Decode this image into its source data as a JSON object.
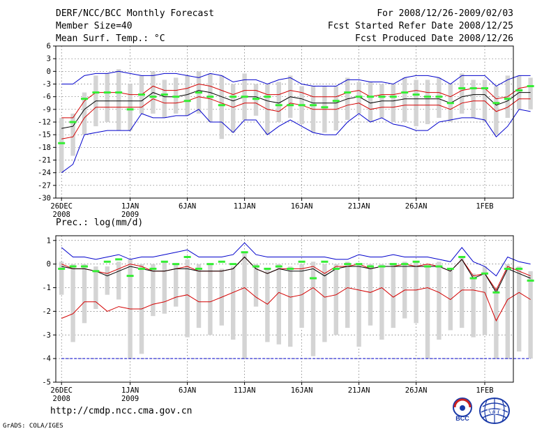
{
  "header": {
    "line1_left": "DERF/NCC/BCC Monthly Forecast",
    "line2_left": "Member Size=40",
    "line3_left": "Mean Surf. Temp.: °C",
    "line1_right": "For 2008/12/26-2009/02/03",
    "line2_right": "Fcst Started Refer Date 2008/12/25",
    "line3_right": "Fcst Produced Date 2008/12/26"
  },
  "footer": {
    "url": "http://cmdp.ncc.cma.gov.cn",
    "credit": "GrADS: COLA/IGES",
    "logo_bcc": "BCC",
    "logo_ncc": "NCC"
  },
  "colors": {
    "spread": "#d4d4d4",
    "ensemble_mean": "#000000",
    "std_band": "#d40000",
    "minmax": "#0000cc",
    "median": "#33ee33"
  },
  "chart_data": [
    {
      "type": "line",
      "name": "temperature",
      "title": "Mean Surf. Temp.: °C",
      "xlabel": "",
      "ylabel": "°C",
      "ylim": [
        -30,
        6
      ],
      "yticks": [
        6,
        3,
        0,
        -3,
        -6,
        -9,
        -12,
        -15,
        -18,
        -21,
        -24,
        -27,
        -30
      ],
      "xlim": [
        -0.5,
        39.5
      ],
      "xticks": [
        {
          "x": 0,
          "label": "26DEC",
          "sub": "2008"
        },
        {
          "x": 6,
          "label": "1JAN",
          "sub": "2009"
        },
        {
          "x": 11,
          "label": "6JAN"
        },
        {
          "x": 16,
          "label": "11JAN"
        },
        {
          "x": 21,
          "label": "16JAN"
        },
        {
          "x": 26,
          "label": "21JAN"
        },
        {
          "x": 31,
          "label": "26JAN"
        },
        {
          "x": 37,
          "label": "1FEB"
        }
      ],
      "grid": true,
      "series": [
        {
          "name": "max",
          "values": [
            -3,
            -3,
            -1,
            -0.5,
            -0.5,
            0,
            -0.5,
            -1,
            -1,
            -0.5,
            -0.5,
            -1,
            -1.5,
            -0.5,
            -1,
            -2.5,
            -2,
            -2,
            -3,
            -2,
            -1.5,
            -3,
            -3.5,
            -3.5,
            -3.5,
            -2,
            -2,
            -2.5,
            -2.5,
            -3,
            -1.5,
            -1,
            -1,
            -1.5,
            -3,
            -1,
            -1,
            -1,
            -3.5,
            -2,
            -1,
            -1
          ]
        },
        {
          "name": "mean_plus_std",
          "values": [
            -11,
            -11,
            -7,
            -5,
            -5,
            -5,
            -5.5,
            -5.5,
            -3.5,
            -4.5,
            -4.5,
            -4,
            -3,
            -3.5,
            -4.5,
            -5.5,
            -4.5,
            -4.5,
            -5.5,
            -5.5,
            -4.5,
            -5,
            -6,
            -6,
            -6,
            -5,
            -4.5,
            -6,
            -5.5,
            -5.5,
            -5,
            -4.5,
            -5,
            -5,
            -6,
            -4.5,
            -4,
            -4,
            -6.5,
            -6,
            -4,
            -3.5
          ]
        },
        {
          "name": "mean",
          "values": [
            -13.5,
            -13,
            -9,
            -7,
            -7,
            -7,
            -7,
            -7,
            -5,
            -6,
            -6,
            -5.5,
            -4.5,
            -5,
            -6,
            -7,
            -6,
            -6,
            -7,
            -7.5,
            -6,
            -6.5,
            -7.5,
            -7.5,
            -7.5,
            -6.5,
            -6,
            -7.5,
            -7,
            -7,
            -6.5,
            -6.5,
            -6.5,
            -6.5,
            -7.5,
            -6,
            -5.5,
            -5.5,
            -8,
            -7,
            -5,
            -5
          ]
        },
        {
          "name": "mean_minus_std",
          "values": [
            -16,
            -15.5,
            -11,
            -8.5,
            -8.5,
            -8.5,
            -8.5,
            -8.5,
            -6.5,
            -7.5,
            -7.5,
            -7,
            -6,
            -6.5,
            -7.5,
            -8.5,
            -7.5,
            -7.5,
            -9,
            -9.5,
            -7.5,
            -8,
            -9,
            -9,
            -9,
            -8,
            -7.5,
            -9,
            -8.5,
            -8.5,
            -8,
            -8,
            -8,
            -8,
            -9,
            -7.5,
            -7,
            -7,
            -9.5,
            -8.5,
            -6.5,
            -6.5
          ]
        },
        {
          "name": "min",
          "values": [
            -24,
            -22,
            -15,
            -14.5,
            -14,
            -14,
            -14,
            -10,
            -11,
            -11,
            -10.5,
            -10.5,
            -9,
            -12,
            -12,
            -14.5,
            -11.5,
            -11.5,
            -15,
            -13,
            -11.5,
            -13,
            -14.5,
            -15,
            -15,
            -12,
            -10,
            -12,
            -11,
            -12.5,
            -13,
            -14,
            -14,
            -12,
            -11.5,
            -11,
            -11,
            -11.5,
            -15.5,
            -13,
            -9,
            -9.5
          ]
        },
        {
          "name": "spread_top",
          "values": [
            -11,
            -10,
            -5,
            -1,
            -0.5,
            0.5,
            -3,
            -1,
            0,
            -2,
            -1.5,
            -1,
            0,
            -0.5,
            -1,
            -3,
            -0.5,
            -3,
            -3,
            -2.5,
            -1,
            -3.5,
            -3.5,
            -3.5,
            -3.5,
            -1.5,
            -2.5,
            -2.5,
            -3,
            -3,
            -1.5,
            -2,
            -2,
            -1.5,
            -3,
            -0.5,
            -2,
            -2,
            -3.5,
            -1,
            -1,
            -1.5
          ]
        },
        {
          "name": "spread_bottom",
          "values": [
            -24,
            -20,
            -15,
            -13,
            -12,
            -14,
            -14,
            -10,
            -10,
            -11,
            -10,
            -10.5,
            -10,
            -12,
            -16,
            -14.5,
            -11.5,
            -10.5,
            -15,
            -12,
            -11,
            -12.5,
            -14.5,
            -14.5,
            -14,
            -11.5,
            -10,
            -12,
            -11,
            -12,
            -12,
            -13,
            -12.5,
            -11,
            -12,
            -10,
            -11,
            -12,
            -15,
            -11,
            -9,
            -9
          ]
        },
        {
          "name": "median",
          "values": [
            -17,
            -12,
            -6.5,
            -5,
            -5,
            -5,
            -9,
            -5.5,
            -6,
            -5.5,
            -6,
            -7,
            -5,
            -6,
            -8,
            -6,
            -6,
            -6.5,
            -6,
            -8,
            -8,
            -8,
            -8,
            -8.5,
            -7,
            -5,
            -6,
            -6,
            -6,
            -6,
            -5,
            -5.5,
            -6,
            -6,
            -7.5,
            -4,
            -4,
            -4,
            -7.5,
            -6.5,
            -4.5,
            -3.5
          ]
        }
      ]
    },
    {
      "type": "line",
      "name": "precipitation",
      "title": "Prec.: log(mm/d)",
      "xlabel": "",
      "ylabel": "log(mm/d)",
      "ylim": [
        -5,
        1.2
      ],
      "yticks": [
        1,
        0,
        -1,
        -2,
        -3,
        -4,
        -5
      ],
      "xlim": [
        -0.5,
        39.5
      ],
      "xticks": [
        {
          "x": 0,
          "label": "26DEC",
          "sub": "2008"
        },
        {
          "x": 6,
          "label": "1JAN",
          "sub": "2009"
        },
        {
          "x": 11,
          "label": "6JAN"
        },
        {
          "x": 16,
          "label": "11JAN"
        },
        {
          "x": 21,
          "label": "16JAN"
        },
        {
          "x": 26,
          "label": "21JAN"
        },
        {
          "x": 31,
          "label": "26JAN"
        },
        {
          "x": 37,
          "label": "1FEB"
        }
      ],
      "grid": true,
      "series": [
        {
          "name": "max",
          "values": [
            0.7,
            0.3,
            0.3,
            0.2,
            0.3,
            0.4,
            0.2,
            0.3,
            0.3,
            0.4,
            0.5,
            0.6,
            0.3,
            0.3,
            0.3,
            0.4,
            0.9,
            0.4,
            0.3,
            0.3,
            0.3,
            0.3,
            0.3,
            0.3,
            0.2,
            0.2,
            0.4,
            0.3,
            0.3,
            0.4,
            0.3,
            0.3,
            0.3,
            0.2,
            0.1,
            0.7,
            0.1,
            -0.1,
            -0.5,
            0.3,
            0.1,
            0
          ]
        },
        {
          "name": "mean_plus_std",
          "values": [
            0,
            -0.2,
            -0.2,
            -0.3,
            -0.4,
            -0.2,
            0,
            -0.1,
            -0.3,
            -0.3,
            -0.2,
            -0.1,
            -0.3,
            -0.3,
            -0.3,
            -0.2,
            0.3,
            -0.2,
            -0.4,
            -0.2,
            -0.2,
            -0.2,
            -0.1,
            -0.4,
            -0.1,
            -0.1,
            0,
            -0.2,
            -0.1,
            -0.1,
            0,
            -0.1,
            0,
            -0.1,
            -0.3,
            0.2,
            -0.5,
            -0.4,
            -1.1,
            -0.1,
            -0.3,
            -0.5
          ]
        },
        {
          "name": "mean",
          "values": [
            -0.1,
            -0.2,
            -0.2,
            -0.3,
            -0.5,
            -0.3,
            -0.1,
            -0.2,
            -0.3,
            -0.3,
            -0.2,
            -0.2,
            -0.3,
            -0.3,
            -0.3,
            -0.2,
            0.3,
            -0.2,
            -0.4,
            -0.2,
            -0.3,
            -0.3,
            -0.2,
            -0.5,
            -0.2,
            -0.1,
            -0.1,
            -0.2,
            -0.1,
            -0.1,
            -0.1,
            -0.1,
            -0.1,
            -0.1,
            -0.3,
            0.2,
            -0.6,
            -0.4,
            -1.2,
            -0.2,
            -0.4,
            -0.6
          ]
        },
        {
          "name": "mean_minus_std",
          "values": [
            -2.3,
            -2.1,
            -1.6,
            -1.6,
            -2,
            -1.8,
            -1.9,
            -1.9,
            -1.7,
            -1.6,
            -1.4,
            -1.3,
            -1.6,
            -1.6,
            -1.4,
            -1.2,
            -1,
            -1.4,
            -1.7,
            -1.2,
            -1.4,
            -1.3,
            -1,
            -1.4,
            -1.3,
            -1,
            -1.1,
            -1.2,
            -1,
            -1.4,
            -1.1,
            -1.1,
            -1,
            -1.2,
            -1.5,
            -1.1,
            -1.1,
            -1.2,
            -2.4,
            -1.5,
            -1.2,
            -1.5
          ]
        },
        {
          "name": "min",
          "values": [
            -4,
            -4,
            -4,
            -4,
            -4,
            -4,
            -4,
            -4,
            -4,
            -4,
            -4,
            -4,
            -4,
            -4,
            -4,
            -4,
            -4,
            -4,
            -4,
            -4,
            -4,
            -4,
            -4,
            -4,
            -4,
            -4,
            -4,
            -4,
            -4,
            -4,
            -4,
            -4,
            -4,
            -4,
            -4,
            -4,
            -4,
            -4,
            -4,
            -4,
            -4,
            -4
          ]
        },
        {
          "name": "spread_top",
          "values": [
            0.1,
            0,
            0,
            -0.1,
            -0.1,
            0.1,
            0.2,
            0,
            0,
            0.1,
            0,
            0.2,
            0,
            0,
            -0.2,
            -0.1,
            0.5,
            0,
            -0.2,
            0,
            -0.1,
            0,
            0.1,
            0,
            0,
            0.1,
            0,
            0,
            0,
            0,
            0.1,
            0.1,
            0,
            0.1,
            -0.2,
            0.3,
            -0.4,
            -0.1,
            -1,
            0,
            -0.1,
            -0.3
          ]
        },
        {
          "name": "spread_bottom",
          "values": [
            -1.3,
            -3.3,
            -2.5,
            -1.9,
            -1.3,
            -1.5,
            -4,
            -3.8,
            -2.2,
            -2.1,
            -1.8,
            -3.1,
            -2.7,
            -3,
            -2.6,
            -3.2,
            -4,
            -1.8,
            -3.3,
            -3.4,
            -3.5,
            -2.7,
            -3.9,
            -3.3,
            -3,
            -2.7,
            -3.5,
            -2.6,
            -3.2,
            -2.7,
            -2.3,
            -2.5,
            -4,
            -3.2,
            -2.8,
            -2.7,
            -3.1,
            -3,
            -4,
            -4,
            -3.7,
            -4
          ]
        },
        {
          "name": "median",
          "values": [
            -0.2,
            -0.1,
            -0.1,
            -0.3,
            0.1,
            0.2,
            -0.5,
            -0.2,
            -0.2,
            0.1,
            0,
            0.3,
            -0.2,
            0,
            0.1,
            0,
            0.5,
            -0.1,
            -0.2,
            -0.1,
            -0.2,
            0.1,
            -0.6,
            0.1,
            -0.2,
            0,
            0,
            -0.1,
            -0.1,
            0,
            0,
            0.1,
            -0.1,
            -0.1,
            -0.2,
            0.3,
            -0.6,
            -0.4,
            -1.2,
            -0.2,
            -0.2,
            -0.7
          ]
        }
      ]
    }
  ]
}
